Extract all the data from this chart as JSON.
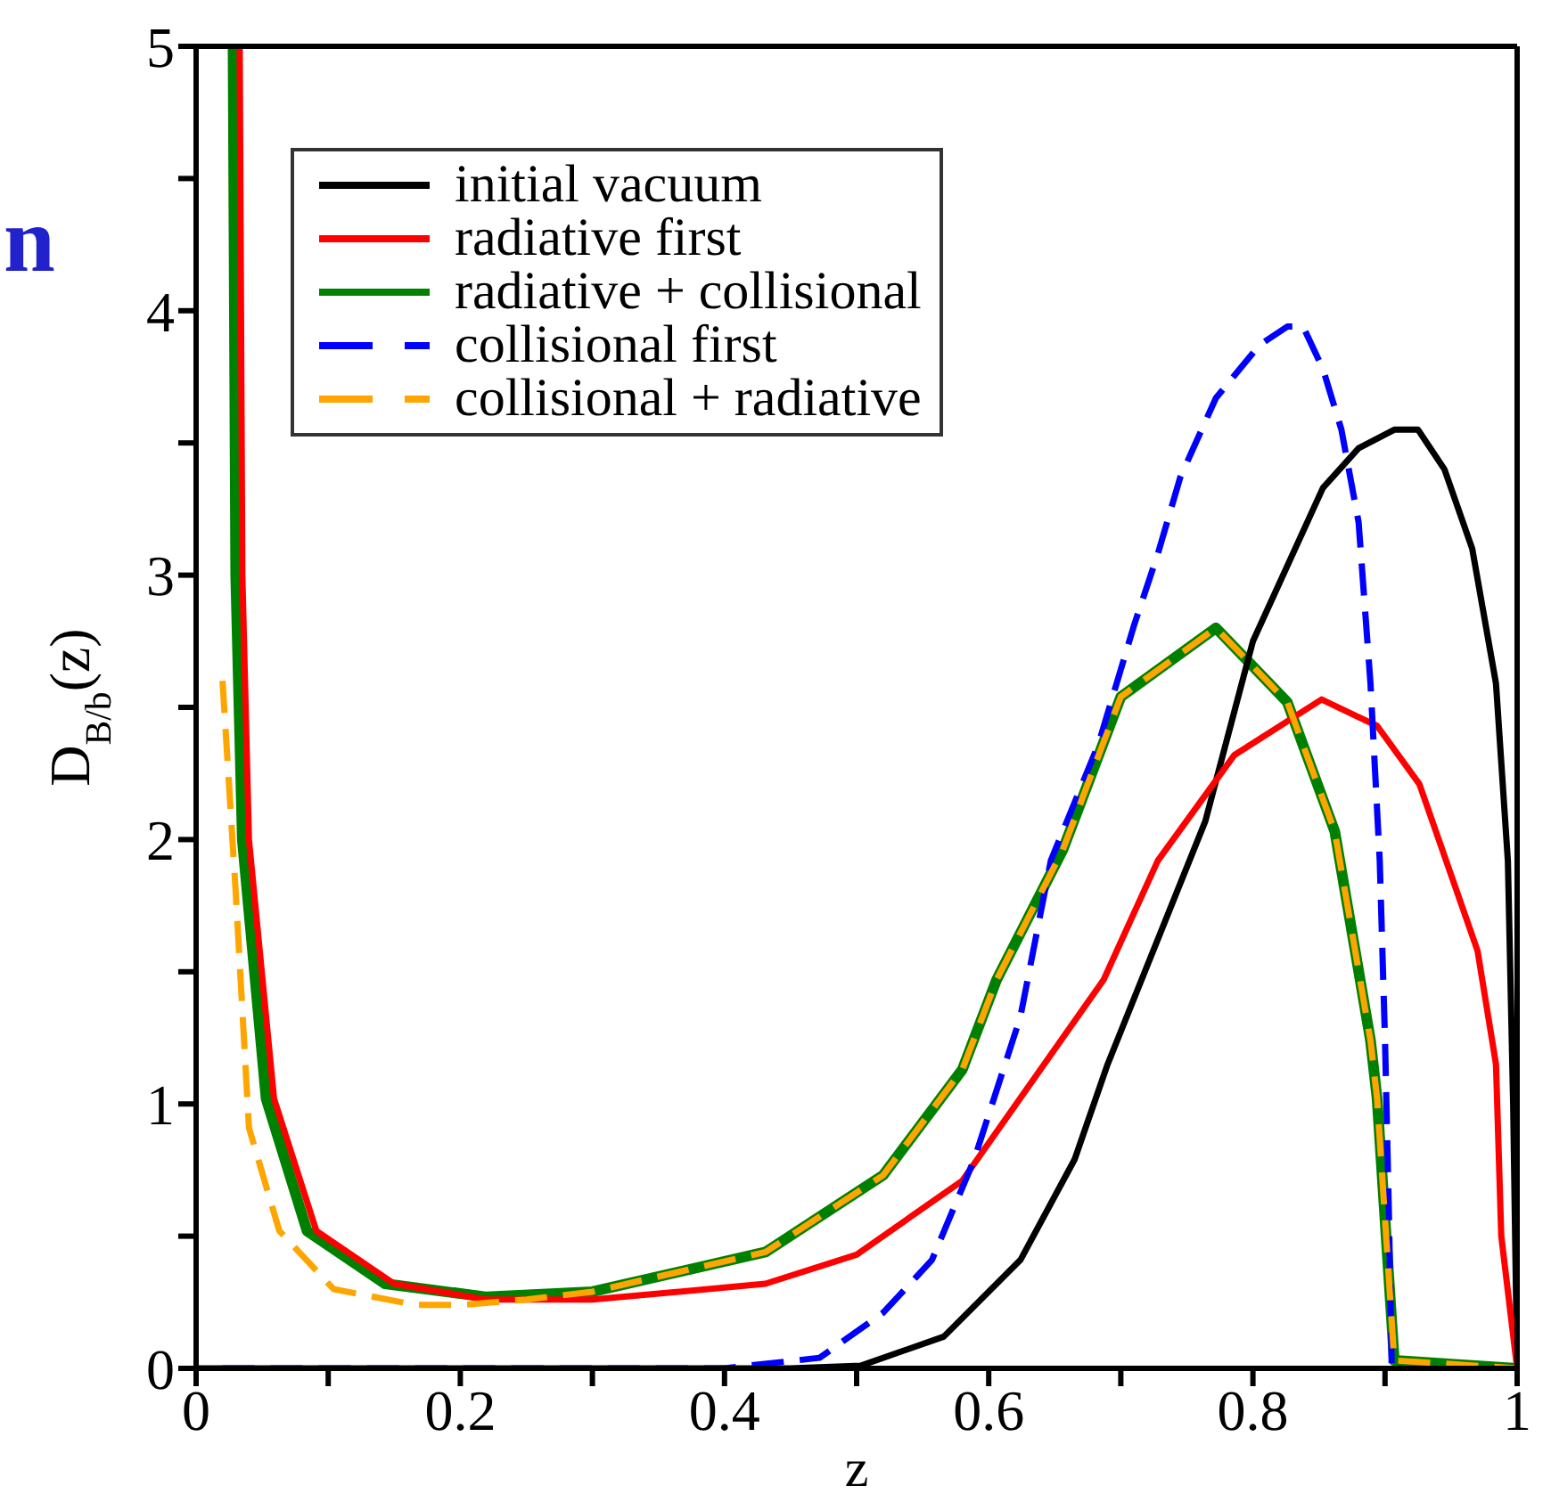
{
  "chart_data": {
    "type": "line",
    "xlabel": "z",
    "ylabel": "D$_{B/b}$(z)",
    "annotations": [
      "n"
    ],
    "xlim": [
      0,
      1
    ],
    "ylim": [
      0,
      5
    ],
    "xticks": [
      0,
      {
        "value": 0.1,
        "label": null
      },
      0.2,
      {
        "value": 0.3,
        "label": null
      },
      0.4,
      {
        "value": 0.5,
        "label": null
      },
      0.6,
      {
        "value": 0.7,
        "label": null
      },
      0.8,
      {
        "value": 0.9,
        "label": null
      },
      1
    ],
    "yticks": [
      0,
      {
        "value": 0.5,
        "label": null
      },
      1,
      {
        "value": 1.5,
        "label": null
      },
      2,
      {
        "value": 2.5,
        "label": null
      },
      3,
      {
        "value": 3.5,
        "label": null
      },
      4,
      {
        "value": 4.5,
        "label": null
      },
      5
    ],
    "grid": false,
    "legend": "top",
    "marker": "none",
    "series": [
      {
        "name": "initial vacuum",
        "color": "#000000",
        "line_style": "solid",
        "x": [
          0,
          0.45,
          0.503,
          0.566,
          0.624,
          0.665,
          0.69,
          0.764,
          0.8,
          0.853,
          0.88,
          0.907,
          0.925,
          0.945,
          0.966,
          0.984,
          0.993,
          0.997,
          1.0
        ],
        "values": [
          0,
          0,
          0.01,
          0.12,
          0.41,
          0.79,
          1.15,
          2.07,
          2.75,
          3.33,
          3.48,
          3.55,
          3.55,
          3.4,
          3.1,
          2.59,
          1.92,
          1.0,
          0
        ]
      },
      {
        "name": "radiative first",
        "color": "#ff0000",
        "line_style": "solid",
        "x": [
          0.033,
          0.035,
          0.04,
          0.059,
          0.091,
          0.15,
          0.22,
          0.3,
          0.431,
          0.5,
          0.58,
          0.687,
          0.728,
          0.786,
          0.852,
          0.894,
          0.926,
          0.97,
          0.984,
          0.988,
          1.0
        ],
        "values": [
          5,
          3,
          2.0,
          1.02,
          0.52,
          0.32,
          0.26,
          0.26,
          0.32,
          0.43,
          0.71,
          1.47,
          1.92,
          2.32,
          2.53,
          2.43,
          2.21,
          1.58,
          1.15,
          0.5,
          0
        ]
      },
      {
        "name": "radiative + collisional",
        "color": "#008000",
        "line_style": "solid",
        "x": [
          0.028,
          0.03,
          0.035,
          0.053,
          0.084,
          0.143,
          0.22,
          0.3,
          0.431,
          0.52,
          0.58,
          0.606,
          0.656,
          0.7,
          0.772,
          0.826,
          0.862,
          0.889,
          0.894,
          0.907,
          1.0
        ],
        "values": [
          5,
          3,
          2.0,
          1.02,
          0.52,
          0.32,
          0.27,
          0.29,
          0.44,
          0.73,
          1.13,
          1.47,
          1.96,
          2.54,
          2.8,
          2.52,
          2.03,
          1.24,
          1.02,
          0.03,
          0
        ]
      },
      {
        "name": "collisional first",
        "color": "#0000ff",
        "line_style": "dashed",
        "x": [
          0.02,
          0.4,
          0.472,
          0.52,
          0.557,
          0.589,
          0.624,
          0.647,
          0.683,
          0.71,
          0.728,
          0.745,
          0.772,
          0.805,
          0.826,
          0.838,
          0.853,
          0.867,
          0.88,
          0.889,
          0.896,
          0.9,
          0.903,
          0.905
        ],
        "values": [
          0,
          0,
          0.04,
          0.21,
          0.41,
          0.79,
          1.33,
          1.92,
          2.36,
          2.81,
          3.08,
          3.37,
          3.67,
          3.87,
          3.94,
          3.94,
          3.78,
          3.55,
          3.2,
          2.59,
          1.92,
          1.24,
          0.57,
          0.02
        ]
      },
      {
        "name": "collisional + radiative",
        "color": "#ffa500",
        "line_style": "dashed",
        "x": [
          0.02,
          0.03,
          0.04,
          0.063,
          0.104,
          0.166,
          0.2,
          0.25,
          0.3,
          0.431,
          0.52,
          0.58,
          0.606,
          0.656,
          0.7,
          0.772,
          0.826,
          0.862,
          0.889,
          0.894,
          0.907,
          1.0
        ],
        "values": [
          2.6,
          1.8,
          0.91,
          0.52,
          0.3,
          0.24,
          0.24,
          0.26,
          0.29,
          0.44,
          0.73,
          1.13,
          1.47,
          1.96,
          2.54,
          2.8,
          2.52,
          2.03,
          1.24,
          1.02,
          0.03,
          0
        ]
      }
    ]
  }
}
